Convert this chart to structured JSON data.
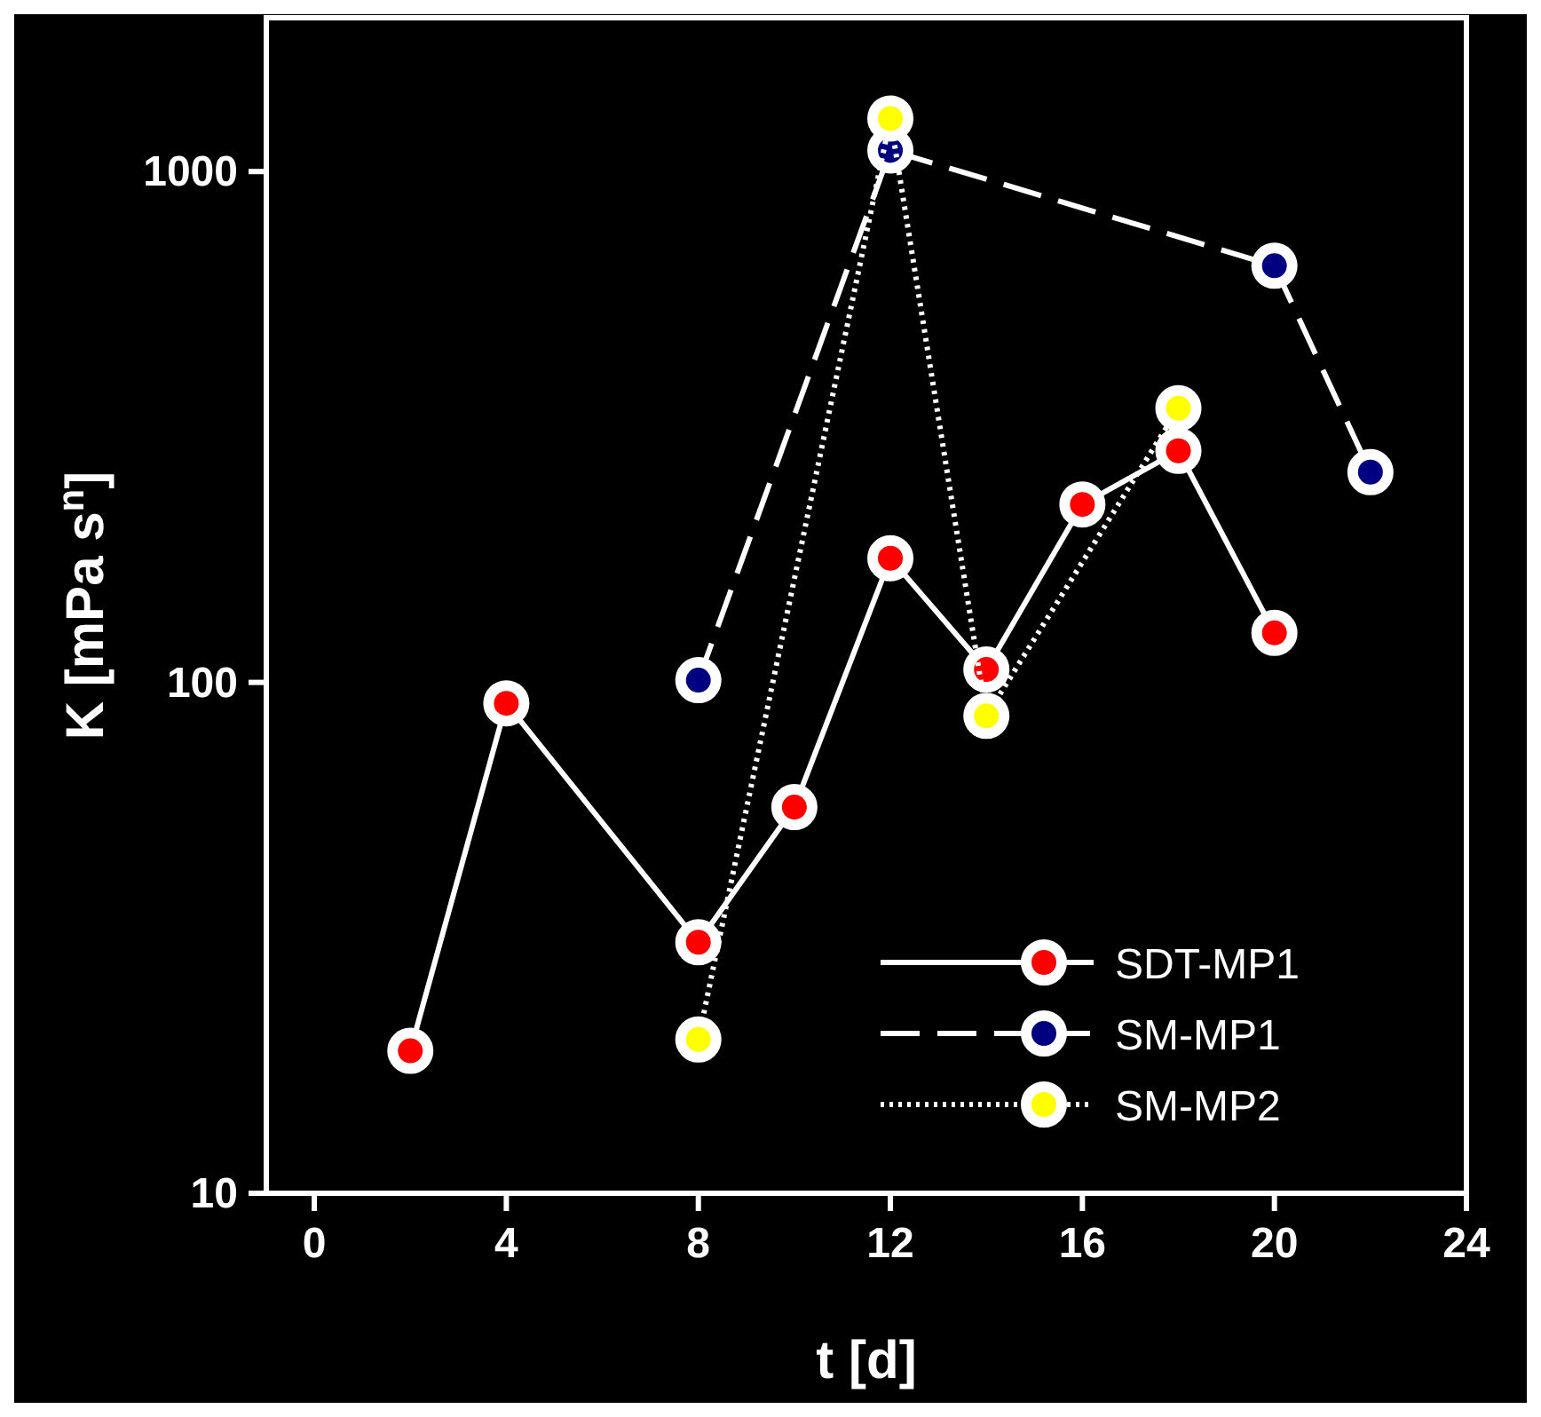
{
  "chart_data": {
    "type": "line",
    "xlabel": "t [d]",
    "ylabel": "K [mPa s$^{n}$]",
    "log": "y",
    "xlim": [
      -1,
      24
    ],
    "xticks": [
      0,
      4,
      8,
      12,
      16,
      20,
      24
    ],
    "ylim": [
      10,
      2000
    ],
    "yticks": [
      10,
      100,
      1000
    ],
    "grid": false,
    "legend": "bottom right",
    "marker": "circle",
    "series": [
      {
        "name": "SDT-MP1",
        "color": "#ff0000",
        "line_style": "solid",
        "x": [
          2,
          4,
          8,
          10,
          12,
          14,
          16,
          18,
          20
        ],
        "values": [
          19,
          91,
          31,
          57,
          175,
          106,
          223,
          284,
          125
        ]
      },
      {
        "name": "SM-MP1",
        "color": "#000080",
        "line_style": "dashed",
        "x": [
          8,
          12,
          20,
          22
        ],
        "values": [
          101,
          1100,
          654,
          258
        ]
      },
      {
        "name": "SM-MP2",
        "color": "#ffff00",
        "line_style": "dotted",
        "x": [
          8,
          12,
          14,
          18
        ],
        "values": [
          20,
          1270,
          86,
          344
        ]
      }
    ]
  }
}
